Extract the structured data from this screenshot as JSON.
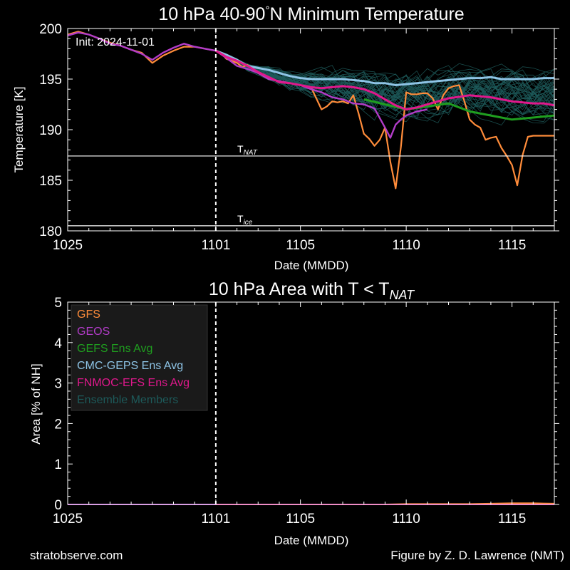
{
  "figure": {
    "footer_left": "stratobserve.com",
    "footer_right": "Figure by Z. D. Lawrence (NMT)",
    "colors": {
      "background": "#000000",
      "gfs": "#ff8c3a",
      "geos": "#b23cc8",
      "gefs": "#1f9e1f",
      "cmc": "#8ec4e6",
      "fnmoc": "#e0188c",
      "members": "#1d5a5a",
      "axes": "#ffffff"
    }
  },
  "chart_data": [
    {
      "type": "line",
      "title_prefix": "10 hPa  40-90",
      "title_deg": "°",
      "title_suffix": "N Minimum Temperature",
      "xlabel": "Date (MMDD)",
      "ylabel": "Temperature  [K]",
      "init_label": "Init: 2024-11-01",
      "init_day": 7,
      "x_axis_start": "2024-10-25",
      "xlim": [
        0,
        23
      ],
      "ylim": [
        180,
        200
      ],
      "xticks": [
        {
          "day": 0,
          "label": "1025"
        },
        {
          "day": 7,
          "label": "1101"
        },
        {
          "day": 11,
          "label": "1105"
        },
        {
          "day": 16,
          "label": "1110"
        },
        {
          "day": 21,
          "label": "1115"
        }
      ],
      "yticks": [
        180,
        185,
        190,
        195,
        200
      ],
      "threshold_lines": [
        {
          "value": 187.4,
          "label_main": "T",
          "label_sub": "NAT"
        },
        {
          "value": 180.5,
          "label_main": "T",
          "label_sub": "ice"
        }
      ],
      "series": [
        {
          "name": "GFS",
          "color": "#ff8c3a",
          "x": [
            0,
            0.5,
            1,
            1.5,
            2,
            2.5,
            3,
            3.5,
            4,
            4.5,
            5,
            5.5,
            6,
            6.5,
            7,
            7.25,
            7.5,
            7.75,
            8,
            8.25,
            8.5,
            8.75,
            9,
            9.5,
            10,
            10.5,
            11,
            11.5,
            12,
            12.25,
            12.5,
            12.75,
            13,
            13.25,
            13.5,
            13.75,
            14,
            14.25,
            14.5,
            14.75,
            15,
            15.25,
            15.5,
            15.75,
            16,
            16.25,
            16.5,
            16.75,
            17,
            17.25,
            17.5,
            17.75,
            18,
            18.25,
            18.5,
            18.75,
            19,
            19.25,
            19.5,
            19.75,
            20,
            20.25,
            20.5,
            20.75,
            21,
            21.25,
            21.5,
            21.75,
            22,
            22.25,
            22.5,
            22.75,
            23
          ],
          "y": [
            199.4,
            199.7,
            199.4,
            199.0,
            198.6,
            198.3,
            197.9,
            197.6,
            196.6,
            197.3,
            197.8,
            198.2,
            198.2,
            198.0,
            197.8,
            197.6,
            197.0,
            196.8,
            196.6,
            196.2,
            196.4,
            196.0,
            195.6,
            195.0,
            194.8,
            194.6,
            194.4,
            194.2,
            192.0,
            192.3,
            192.8,
            192.7,
            192.8,
            192.6,
            193.4,
            191.6,
            189.6,
            189.1,
            188.4,
            189.0,
            190.2,
            186.8,
            184.2,
            188.3,
            193.7,
            193.5,
            193.5,
            193.6,
            193.6,
            193.1,
            192.0,
            193.4,
            194.1,
            194.3,
            194.4,
            192.8,
            191.0,
            190.5,
            190.2,
            189.0,
            189.2,
            189.3,
            188.2,
            187.4,
            186.5,
            184.5,
            187.5,
            189.3,
            189.4,
            189.4,
            189.4,
            189.4,
            189.4
          ]
        },
        {
          "name": "GEOS",
          "color": "#b23cc8",
          "x": [
            0,
            0.5,
            1,
            1.5,
            2,
            2.5,
            3,
            3.5,
            4,
            4.5,
            5,
            5.5,
            6,
            6.5,
            7,
            7.5,
            8,
            8.5,
            9,
            9.5,
            10,
            10.5,
            11,
            11.5,
            12,
            12.5,
            13,
            13.5,
            14,
            14.5,
            15,
            15.25,
            15.5,
            15.75,
            16,
            16.5,
            17
          ],
          "y": [
            199.3,
            199.6,
            199.4,
            199.0,
            198.5,
            198.3,
            197.9,
            197.5,
            196.9,
            197.6,
            198.1,
            198.5,
            198.2,
            198.0,
            197.8,
            197.1,
            196.3,
            196.0,
            195.6,
            195.0,
            194.8,
            194.6,
            194.4,
            194.0,
            193.7,
            193.2,
            193.0,
            192.6,
            192.5,
            192.1,
            190.2,
            189.2,
            190.5,
            191.0,
            191.4,
            191.8,
            192.0
          ]
        },
        {
          "name": "GEFS Ens Avg",
          "color": "#1f9e1f",
          "x": [
            14,
            15,
            16,
            17,
            18,
            19,
            20,
            21,
            22,
            23
          ],
          "y": [
            193.0,
            192.5,
            192.0,
            192.3,
            192.6,
            191.8,
            191.4,
            191.0,
            191.2,
            191.4
          ]
        },
        {
          "name": "CMC-GEPS Ens Avg",
          "color": "#8ec4e6",
          "x": [
            7,
            7.5,
            8,
            8.5,
            9,
            9.5,
            10,
            10.5,
            11,
            11.5,
            12,
            12.5,
            13,
            13.5,
            14,
            14.5,
            15,
            15.5,
            16,
            16.5,
            17,
            17.5,
            18,
            18.5,
            19,
            19.5,
            20,
            20.5,
            21,
            21.5,
            22,
            22.5,
            23
          ],
          "y": [
            197.8,
            197.4,
            196.9,
            196.3,
            196.1,
            195.9,
            195.6,
            195.3,
            195.1,
            195.0,
            195.0,
            195.0,
            195.0,
            194.9,
            194.8,
            194.6,
            194.6,
            194.4,
            194.5,
            194.6,
            194.7,
            194.8,
            194.9,
            195.0,
            195.1,
            195.1,
            195.2,
            195.0,
            195.0,
            195.0,
            195.0,
            195.1,
            195.1
          ]
        },
        {
          "name": "FNMOC-EFS Ens Avg",
          "color": "#e0188c",
          "x": [
            7,
            7.5,
            8,
            8.5,
            9,
            9.5,
            10,
            10.5,
            11,
            11.5,
            12,
            12.5,
            13,
            13.5,
            14,
            14.5,
            15,
            15.5,
            16,
            16.5,
            17,
            17.5,
            18,
            19,
            19.5,
            20,
            20.5,
            21,
            21.5,
            22,
            22.5,
            23
          ],
          "y": [
            197.8,
            197.2,
            196.8,
            196.3,
            195.7,
            195.2,
            194.7,
            194.6,
            194.4,
            194.2,
            194.1,
            194.2,
            194.3,
            194.2,
            194.0,
            193.6,
            193.0,
            192.4,
            192.0,
            192.2,
            192.5,
            192.8,
            193.1,
            193.4,
            193.3,
            193.2,
            193.0,
            192.8,
            192.7,
            192.6,
            192.6,
            192.4
          ]
        },
        {
          "name": "Ensemble Members",
          "color": "#1d5a5a"
        }
      ]
    },
    {
      "type": "line",
      "title_prefix": "10 hPa Area with T < T",
      "title_sub": "NAT",
      "xlabel": "Date (MMDD)",
      "ylabel": "Area [% of NH]",
      "init_day": 7,
      "x_axis_start": "2024-10-25",
      "xlim": [
        0,
        23
      ],
      "ylim": [
        0,
        5
      ],
      "xticks": [
        {
          "day": 0,
          "label": "1025"
        },
        {
          "day": 7,
          "label": "1101"
        },
        {
          "day": 11,
          "label": "1105"
        },
        {
          "day": 16,
          "label": "1110"
        },
        {
          "day": 21,
          "label": "1115"
        }
      ],
      "yticks": [
        0,
        1,
        2,
        3,
        4,
        5
      ],
      "legend": {
        "placement": "top-left",
        "entries": [
          {
            "label": "GFS",
            "color": "#ff8c3a"
          },
          {
            "label": "GEOS",
            "color": "#b23cc8"
          },
          {
            "label": "GEFS Ens Avg",
            "color": "#1f9e1f"
          },
          {
            "label": "CMC-GEPS Ens Avg",
            "color": "#8ec4e6"
          },
          {
            "label": "FNMOC-EFS Ens Avg",
            "color": "#e0188c"
          },
          {
            "label": "Ensemble Members",
            "color": "#1d5a5a"
          }
        ]
      },
      "series": [
        {
          "name": "GFS",
          "color": "#ff8c3a",
          "x": [
            0,
            15,
            16,
            17,
            18,
            19,
            20,
            21,
            22,
            23
          ],
          "y": [
            0,
            0,
            0.01,
            0.01,
            0.01,
            0.01,
            0.02,
            0.03,
            0.03,
            0.02
          ]
        },
        {
          "name": "GEOS",
          "color": "#b23cc8",
          "x": [
            0,
            17
          ],
          "y": [
            0,
            0
          ]
        },
        {
          "name": "GEFS Ens Avg",
          "color": "#1f9e1f",
          "x": [
            14,
            23
          ],
          "y": [
            0,
            0
          ]
        },
        {
          "name": "CMC-GEPS Ens Avg",
          "color": "#8ec4e6",
          "x": [
            7,
            23
          ],
          "y": [
            0,
            0
          ]
        },
        {
          "name": "FNMOC-EFS Ens Avg",
          "color": "#e0188c",
          "x": [
            7,
            23
          ],
          "y": [
            0,
            0
          ]
        }
      ]
    }
  ]
}
